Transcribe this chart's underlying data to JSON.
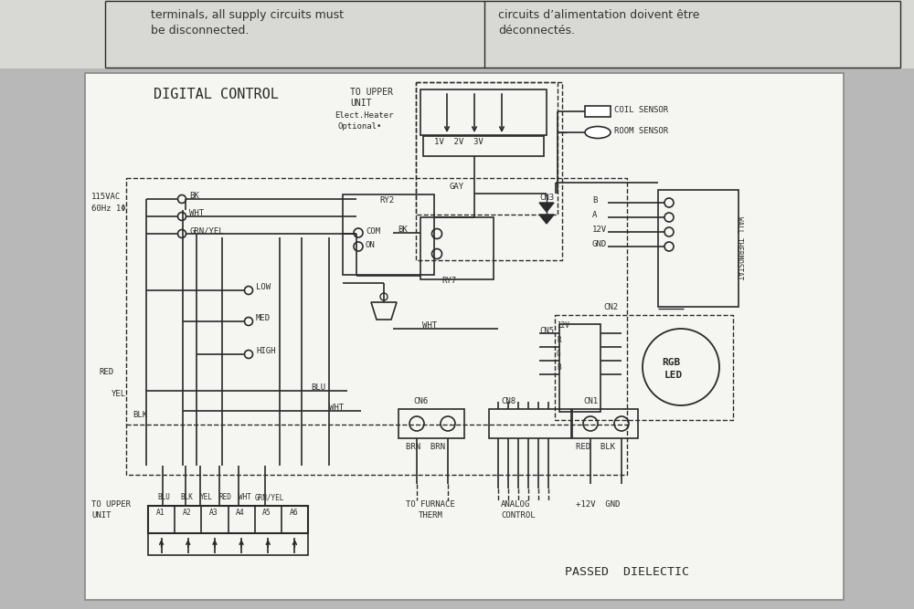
{
  "bg_outer": "#b8b8b8",
  "bg_top": "#dcdcd8",
  "bg_diagram": "#f2f2ee",
  "lc": "#2a2a2a",
  "tc": "#2a2a2a",
  "top_en": "terminals, all supply circuits must\nbe disconnected.",
  "top_fr": "circuits d’alimentation doivent être\ndéconnectés.",
  "title": "DIGITAL CONTROL",
  "passed": "PASSED  DIELECTIC"
}
